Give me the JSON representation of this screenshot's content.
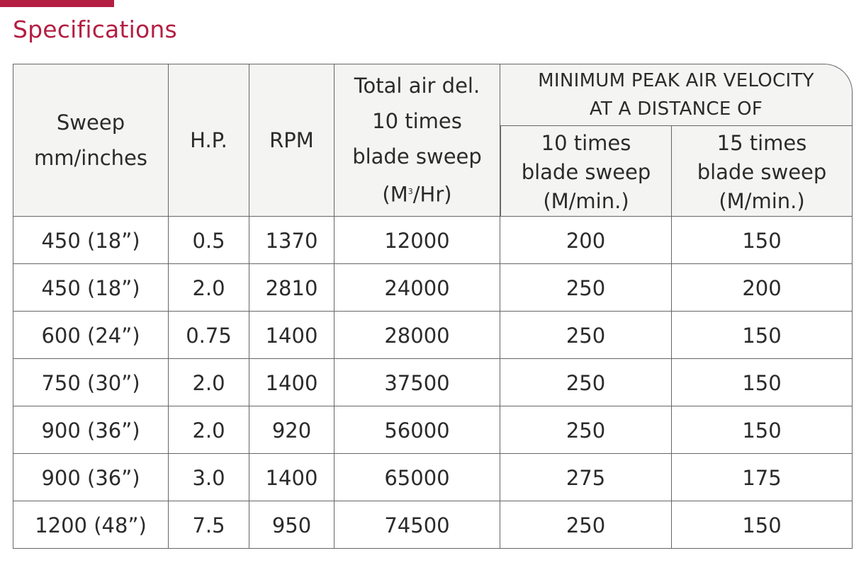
{
  "accent_color": "#b41e42",
  "title": "Specifications",
  "header": {
    "sweep": [
      "Sweep",
      "mm/inches"
    ],
    "hp": "H.P.",
    "rpm": "RPM",
    "air_del": [
      "Total air del.",
      "10 times",
      "blade sweep",
      "(M",
      "3",
      "/Hr)"
    ],
    "velocity_group": [
      "MINIMUM PEAK AIR VELOCITY",
      "AT A DISTANCE OF"
    ],
    "vel_10": [
      "10 times",
      "blade sweep",
      "(M/min.)"
    ],
    "vel_15": [
      "15 times",
      "blade sweep",
      "(M/min.)"
    ]
  },
  "rows": [
    [
      "450 (18”)",
      "0.5",
      "1370",
      "12000",
      "200",
      "150"
    ],
    [
      "450 (18”)",
      "2.0",
      "2810",
      "24000",
      "250",
      "200"
    ],
    [
      "600 (24”)",
      "0.75",
      "1400",
      "28000",
      "250",
      "150"
    ],
    [
      "750 (30”)",
      "2.0",
      "1400",
      "37500",
      "250",
      "150"
    ],
    [
      "900 (36”)",
      "2.0",
      "920",
      "56000",
      "250",
      "150"
    ],
    [
      "900 (36”)",
      "3.0",
      "1400",
      "65000",
      "275",
      "175"
    ],
    [
      "1200 (48”)",
      "7.5",
      "950",
      "74500",
      "250",
      "150"
    ]
  ]
}
